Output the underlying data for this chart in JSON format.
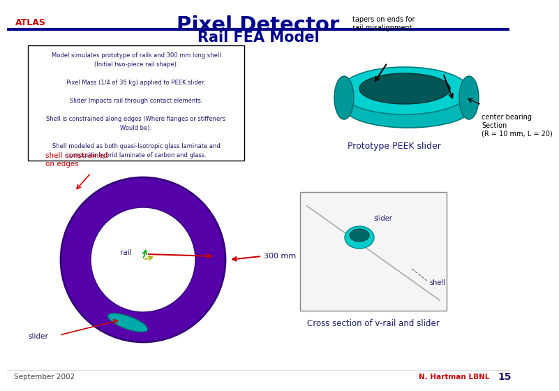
{
  "title": "Pixel Detector",
  "subtitle": "Rail FEA Model",
  "atlas_text": "ATLAS",
  "bullet_box_lines": [
    "Model simulates prototype of rails and 300 mm long shell",
    "(Initial two-piece rail shape).",
    "",
    "Pixel Mass (1/4 of 35 kg) applied to PEEK slider.",
    "",
    "Slider Impacts rail through contact elements.",
    "",
    "Shell is constrained along edges (Where flanges or stiffeners",
    "Would be).",
    "",
    "Shell modeled as both quasi-Isotropic glass laminate and",
    "composite hybrid laminate of carbon and glass."
  ],
  "label_tapers": "tapers on ends for\nrail misalignment",
  "label_center_bearing": "center bearing\nSection\n(R = 10 mm, L = 20)",
  "label_prototype": "Prototype PEEK slider",
  "label_shell_constrained": "shell constrained\non edges",
  "label_rail": "rail",
  "label_300mm": "300 mm",
  "label_slider_bottom": "slider",
  "label_cross_section": "Cross section of v-rail and slider",
  "label_cross_slider": "slider",
  "label_cross_shell": "shell",
  "footer_left": "September 2002",
  "footer_center": "N. Hartman LBNL",
  "footer_page": "15",
  "bg_color": "#ffffff",
  "title_color": "#00008B",
  "atlas_color": "#cc0000",
  "subtitle_color": "#00008B",
  "bullet_color": "#1a1a6e",
  "label_color_dark": "#1a1a6e",
  "label_color_red": "#cc0000",
  "footer_color": "#444444",
  "footer_name_color": "#cc0000",
  "line_color": "#00008B",
  "box_color": "#000000"
}
